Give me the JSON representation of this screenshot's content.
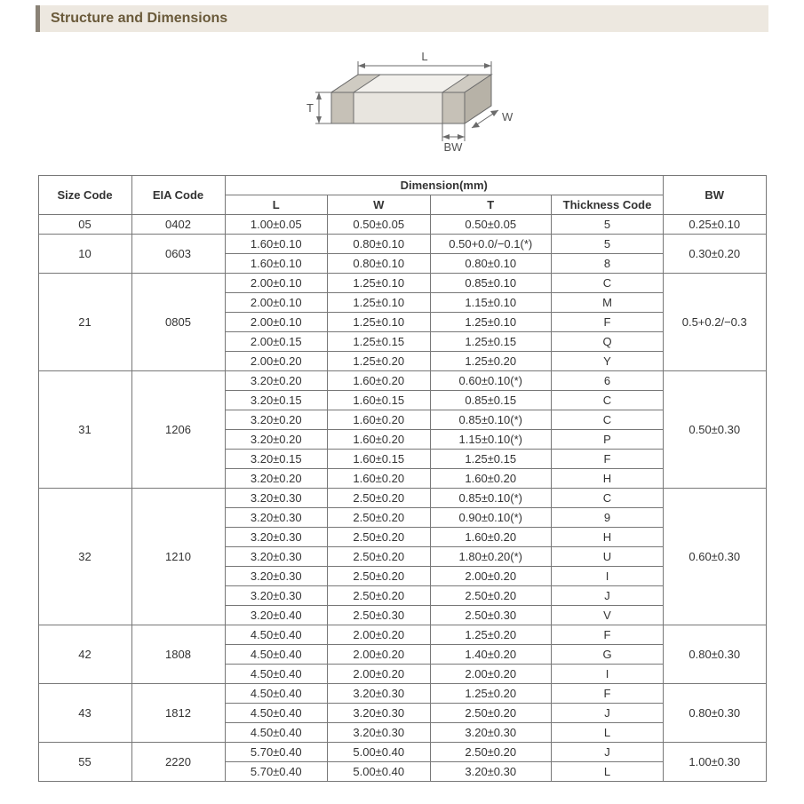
{
  "title": "Structure and Dimensions",
  "diagram": {
    "labels": {
      "L": "L",
      "T": "T",
      "W": "W",
      "BW": "BW"
    },
    "stroke": "#6b6b6b",
    "fill_top": "#f2f0ec",
    "fill_side": "#d8d4cc",
    "fill_front": "#e8e5df",
    "fill_pad_top": "#cfcbc2",
    "fill_pad_side": "#b7b2a7",
    "fill_pad_front": "#c6c1b7"
  },
  "headers": {
    "size_code": "Size Code",
    "eia_code": "EIA Code",
    "dimension": "Dimension(mm)",
    "L": "L",
    "W": "W",
    "T": "T",
    "thickness_code": "Thickness  Code",
    "BW": "BW"
  },
  "groups": [
    {
      "size": "05",
      "eia": "0402",
      "bw": "0.25±0.10",
      "rows": [
        {
          "L": "1.00±0.05",
          "W": "0.50±0.05",
          "T": "0.50±0.05",
          "tc": "5"
        }
      ]
    },
    {
      "size": "10",
      "eia": "0603",
      "bw": "0.30±0.20",
      "rows": [
        {
          "L": "1.60±0.10",
          "W": "0.80±0.10",
          "T": "0.50+0.0/−0.1(*)",
          "tc": "5"
        },
        {
          "L": "1.60±0.10",
          "W": "0.80±0.10",
          "T": "0.80±0.10",
          "tc": "8"
        }
      ]
    },
    {
      "size": "21",
      "eia": "0805",
      "bw": "0.5+0.2/−0.3",
      "rows": [
        {
          "L": "2.00±0.10",
          "W": "1.25±0.10",
          "T": "0.85±0.10",
          "tc": "C"
        },
        {
          "L": "2.00±0.10",
          "W": "1.25±0.10",
          "T": "1.15±0.10",
          "tc": "M"
        },
        {
          "L": "2.00±0.10",
          "W": "1.25±0.10",
          "T": "1.25±0.10",
          "tc": "F"
        },
        {
          "L": "2.00±0.15",
          "W": "1.25±0.15",
          "T": "1.25±0.15",
          "tc": "Q"
        },
        {
          "L": "2.00±0.20",
          "W": "1.25±0.20",
          "T": "1.25±0.20",
          "tc": "Y"
        }
      ]
    },
    {
      "size": "31",
      "eia": "1206",
      "bw": "0.50±0.30",
      "rows": [
        {
          "L": "3.20±0.20",
          "W": "1.60±0.20",
          "T": "0.60±0.10(*)",
          "tc": "6"
        },
        {
          "L": "3.20±0.15",
          "W": "1.60±0.15",
          "T": "0.85±0.15",
          "tc": "C"
        },
        {
          "L": "3.20±0.20",
          "W": "1.60±0.20",
          "T": "0.85±0.10(*)",
          "tc": "C"
        },
        {
          "L": "3.20±0.20",
          "W": "1.60±0.20",
          "T": "1.15±0.10(*)",
          "tc": "P"
        },
        {
          "L": "3.20±0.15",
          "W": "1.60±0.15",
          "T": "1.25±0.15",
          "tc": "F"
        },
        {
          "L": "3.20±0.20",
          "W": "1.60±0.20",
          "T": "1.60±0.20",
          "tc": "H"
        }
      ]
    },
    {
      "size": "32",
      "eia": "1210",
      "bw": "0.60±0.30",
      "rows": [
        {
          "L": "3.20±0.30",
          "W": "2.50±0.20",
          "T": "0.85±0.10(*)",
          "tc": "C"
        },
        {
          "L": "3.20±0.30",
          "W": "2.50±0.20",
          "T": "0.90±0.10(*)",
          "tc": "9"
        },
        {
          "L": "3.20±0.30",
          "W": "2.50±0.20",
          "T": "1.60±0.20",
          "tc": "H"
        },
        {
          "L": "3.20±0.30",
          "W": "2.50±0.20",
          "T": "1.80±0.20(*)",
          "tc": "U"
        },
        {
          "L": "3.20±0.30",
          "W": "2.50±0.20",
          "T": "2.00±0.20",
          "tc": "I"
        },
        {
          "L": "3.20±0.30",
          "W": "2.50±0.20",
          "T": "2.50±0.20",
          "tc": "J"
        },
        {
          "L": "3.20±0.40",
          "W": "2.50±0.30",
          "T": "2.50±0.30",
          "tc": "V"
        }
      ]
    },
    {
      "size": "42",
      "eia": "1808",
      "bw": "0.80±0.30",
      "rows": [
        {
          "L": "4.50±0.40",
          "W": "2.00±0.20",
          "T": "1.25±0.20",
          "tc": "F"
        },
        {
          "L": "4.50±0.40",
          "W": "2.00±0.20",
          "T": "1.40±0.20",
          "tc": "G"
        },
        {
          "L": "4.50±0.40",
          "W": "2.00±0.20",
          "T": "2.00±0.20",
          "tc": "I"
        }
      ]
    },
    {
      "size": "43",
      "eia": "1812",
      "bw": "0.80±0.30",
      "rows": [
        {
          "L": "4.50±0.40",
          "W": "3.20±0.30",
          "T": "1.25±0.20",
          "tc": "F"
        },
        {
          "L": "4.50±0.40",
          "W": "3.20±0.30",
          "T": "2.50±0.20",
          "tc": "J"
        },
        {
          "L": "4.50±0.40",
          "W": "3.20±0.30",
          "T": "3.20±0.30",
          "tc": "L"
        }
      ]
    },
    {
      "size": "55",
      "eia": "2220",
      "bw": "1.00±0.30",
      "rows": [
        {
          "L": "5.70±0.40",
          "W": "5.00±0.40",
          "T": "2.50±0.20",
          "tc": "J"
        },
        {
          "L": "5.70±0.40",
          "W": "5.00±0.40",
          "T": "3.20±0.30",
          "tc": "L"
        }
      ]
    }
  ]
}
